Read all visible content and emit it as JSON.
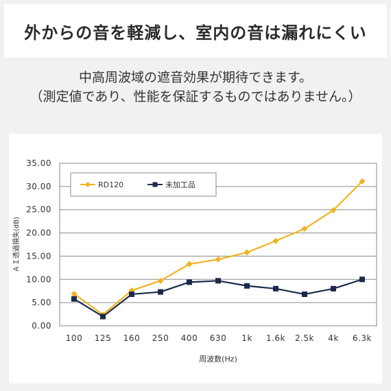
{
  "header": {
    "title": "外からの音を軽減し、室内の音は漏れにくい"
  },
  "description": {
    "line1": "中高周波域の遮音効果が期待できます。",
    "line2": "（測定値であり、性能を保証するものではありません。）"
  },
  "chart_data": {
    "type": "line",
    "categories": [
      "100",
      "125",
      "160",
      "250",
      "400",
      "630",
      "1k",
      "1.6k",
      "2.5k",
      "4k",
      "6.3k"
    ],
    "series": [
      {
        "name": "RD120",
        "color": "#f0b323",
        "marker": "diamond",
        "values": [
          6.9,
          2.4,
          7.6,
          9.7,
          13.3,
          14.3,
          15.8,
          18.3,
          20.9,
          24.9,
          31.1
        ]
      },
      {
        "name": "未加工品",
        "color": "#1b2a4a",
        "marker": "square",
        "values": [
          5.8,
          2.0,
          6.8,
          7.3,
          9.4,
          9.7,
          8.6,
          8.0,
          6.8,
          8.0,
          10.0
        ]
      }
    ],
    "title": "",
    "xlabel": "周波数(Hz)",
    "ylabel": "ＡＩ透過損失(dB)",
    "ylim": [
      0,
      35
    ],
    "yticks": [
      "0.00",
      "5.00",
      "10.00",
      "15.00",
      "20.00",
      "25.00",
      "30.00",
      "35.00"
    ],
    "grid": true,
    "legend": "top-left"
  }
}
